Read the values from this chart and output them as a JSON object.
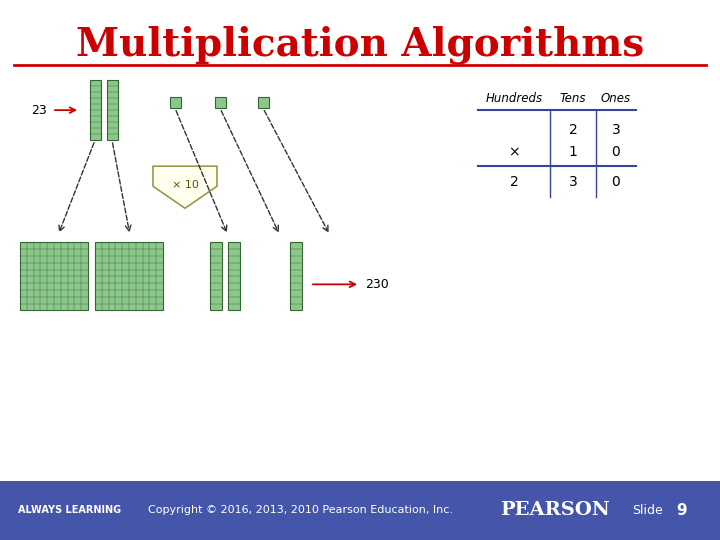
{
  "title": "Multiplication Algorithms",
  "title_color": "#cc0000",
  "title_fontsize": 28,
  "bg_color": "#ffffff",
  "footer_bg_color": "#4455aa",
  "footer_text_color": "#ffffff",
  "footer_left": "ALWAYS LEARNING",
  "footer_center": "Copyright © 2016, 2013, 2010 Pearson Education, Inc.",
  "footer_right": "PEARSON",
  "footer_slide": "Slide",
  "footer_slide_num": "9",
  "divider_color": "#cc0000",
  "table_headers": [
    "Hundreds",
    "Tens",
    "Ones"
  ],
  "table_row1": [
    "",
    "2",
    "3"
  ],
  "table_row2": [
    "×",
    "1",
    "0"
  ],
  "table_row3": [
    "2",
    "3",
    "0"
  ],
  "table_color": "#334499",
  "label_23": "23",
  "label_230": "230",
  "label_x10": "× 10",
  "block_color": "#8cc88c",
  "block_edge_color": "#336633",
  "arrow_color": "#cc0000",
  "dashed_color": "#333333"
}
